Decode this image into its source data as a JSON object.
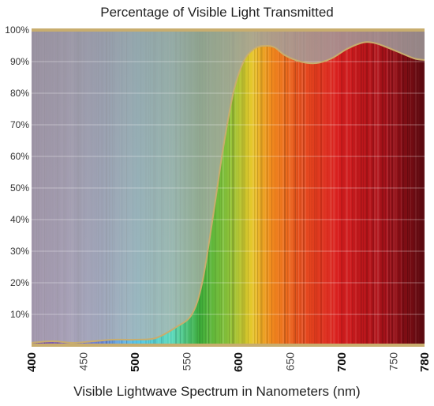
{
  "chart_data": {
    "type": "area",
    "title": "Percentage of Visible Light Transmitted",
    "xlabel": "Visible Lightwave Spectrum in Nanometers (nm)",
    "ylabel": "",
    "xlim": [
      400,
      780
    ],
    "ylim": [
      0,
      100
    ],
    "grid": true,
    "legend": "none",
    "x_ticks": [
      "400",
      "450",
      "500",
      "550",
      "600",
      "650",
      "700",
      "750",
      "780"
    ],
    "major_x_ticks": [
      "400",
      "500",
      "600",
      "700",
      "780"
    ],
    "y_ticks": [
      "10%",
      "20%",
      "30%",
      "40%",
      "50%",
      "60%",
      "70%",
      "80%",
      "90%",
      "100%"
    ],
    "series": [
      {
        "x": [
          400,
          420,
          440,
          460,
          480,
          500,
          520,
          540,
          555,
          565,
          575,
          585,
          595,
          605,
          615,
          625,
          635,
          645,
          660,
          675,
          690,
          705,
          720,
          730,
          740,
          755,
          770,
          780
        ],
        "y": [
          1,
          1.5,
          1,
          1.5,
          2,
          2,
          2.5,
          6,
          10,
          20,
          40,
          62,
          80,
          90,
          94,
          95,
          94.5,
          92,
          90,
          89.5,
          91,
          94,
          96,
          96,
          95,
          93,
          91,
          90.5
        ]
      }
    ],
    "colors": {
      "curve": "#c8ad6e",
      "shade": "#8e8e8e",
      "axis_bar": "#c8ad6e"
    }
  }
}
